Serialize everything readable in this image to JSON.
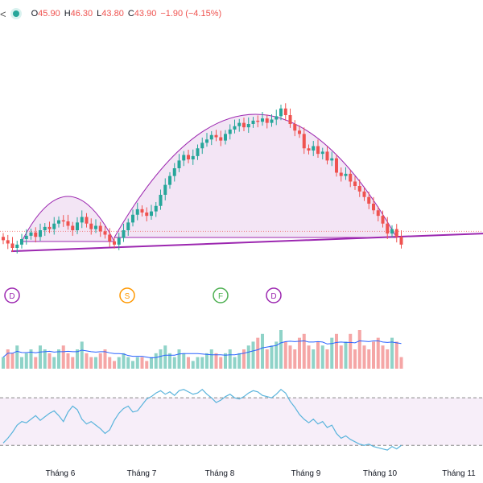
{
  "legend": {
    "symbol_glyph": "<",
    "open_label": "O",
    "open_value": "45.90",
    "high_label": "H",
    "high_value": "46.30",
    "low_label": "L",
    "low_value": "43.80",
    "close_label": "C",
    "close_value": "43.90",
    "change": "−1.90 (−4.15%)"
  },
  "colors": {
    "up": "#26a69a",
    "down": "#ef5350",
    "pattern": "#9c27b0",
    "rsi_line": "#5ab4dc",
    "volume_ma": "#2962ff",
    "volume_up": "#8fd3c8",
    "volume_down": "#f5a6a6"
  },
  "events": [
    {
      "letter": "D",
      "color": "#9c27b0"
    },
    {
      "letter": "S",
      "color": "#ff9800"
    },
    {
      "letter": "F",
      "color": "#4caf50"
    },
    {
      "letter": "D",
      "color": "#9c27b0"
    }
  ],
  "time_axis": [
    "Tháng 6",
    "Tháng 7",
    "Tháng 8",
    "Tháng 9",
    "Tháng 10",
    "Tháng 11"
  ],
  "chart_data": {
    "type": "candlestick",
    "candles_close_start": 44.3,
    "candles_close_path": [
      44.3,
      44.0,
      43.6,
      43.9,
      44.4,
      44.7,
      45.0,
      44.6,
      45.2,
      45.5,
      45.3,
      45.8,
      46.1,
      46.0,
      45.6,
      45.2,
      45.9,
      46.4,
      45.8,
      45.3,
      45.6,
      45.1,
      44.8,
      44.2,
      43.9,
      44.5,
      45.2,
      45.9,
      46.6,
      47.1,
      46.8,
      46.5,
      46.9,
      47.4,
      48.4,
      49.3,
      50.1,
      50.8,
      51.5,
      52.0,
      51.6,
      51.9,
      52.6,
      53.1,
      53.4,
      53.8,
      53.6,
      53.3,
      53.9,
      54.3,
      54.6,
      54.9,
      54.5,
      54.8,
      55.1,
      55.0,
      55.3,
      54.9,
      55.2,
      55.5,
      56.2,
      55.6,
      54.8,
      54.2,
      53.9,
      52.6,
      52.4,
      52.8,
      52.1,
      52.3,
      51.5,
      51.7,
      50.4,
      50.1,
      50.3,
      49.6,
      49.2,
      48.7,
      48.2,
      47.6,
      47.0,
      46.5,
      45.8,
      44.9,
      45.3,
      44.6,
      43.9
    ],
    "price_line": 45.1,
    "volume_relative": [
      0.3,
      0.5,
      0.4,
      0.6,
      0.3,
      0.4,
      0.5,
      0.3,
      0.6,
      0.5,
      0.4,
      0.3,
      0.5,
      0.6,
      0.4,
      0.3,
      0.5,
      0.7,
      0.4,
      0.3,
      0.3,
      0.4,
      0.5,
      0.3,
      0.2,
      0.3,
      0.4,
      0.3,
      0.2,
      0.3,
      0.3,
      0.2,
      0.3,
      0.4,
      0.5,
      0.6,
      0.4,
      0.3,
      0.5,
      0.4,
      0.3,
      0.2,
      0.3,
      0.3,
      0.4,
      0.5,
      0.4,
      0.3,
      0.4,
      0.5,
      0.3,
      0.4,
      0.5,
      0.6,
      0.7,
      0.8,
      0.9,
      0.5,
      0.6,
      0.7,
      1.0,
      0.7,
      0.6,
      0.5,
      0.8,
      0.9,
      0.6,
      0.5,
      0.7,
      0.6,
      0.5,
      0.8,
      0.9,
      0.6,
      0.7,
      0.9,
      0.5,
      1.0,
      0.6,
      0.5,
      0.7,
      0.8,
      0.6,
      0.5,
      0.8,
      0.7,
      0.3
    ],
    "rsi": [
      32,
      36,
      41,
      47,
      50,
      49,
      52,
      55,
      51,
      54,
      57,
      59,
      55,
      50,
      58,
      63,
      60,
      52,
      48,
      50,
      47,
      44,
      40,
      43,
      51,
      57,
      61,
      63,
      58,
      59,
      64,
      69,
      71,
      74,
      76,
      73,
      75,
      72,
      76,
      77,
      75,
      73,
      74,
      77,
      73,
      70,
      66,
      68,
      71,
      73,
      70,
      69,
      71,
      74,
      76,
      75,
      72,
      71,
      70,
      73,
      77,
      74,
      67,
      62,
      56,
      52,
      49,
      52,
      48,
      50,
      45,
      47,
      40,
      36,
      38,
      35,
      33,
      31,
      30,
      31,
      29,
      28,
      27,
      26,
      29,
      27,
      30
    ],
    "rsi_band": [
      30,
      70
    ]
  }
}
